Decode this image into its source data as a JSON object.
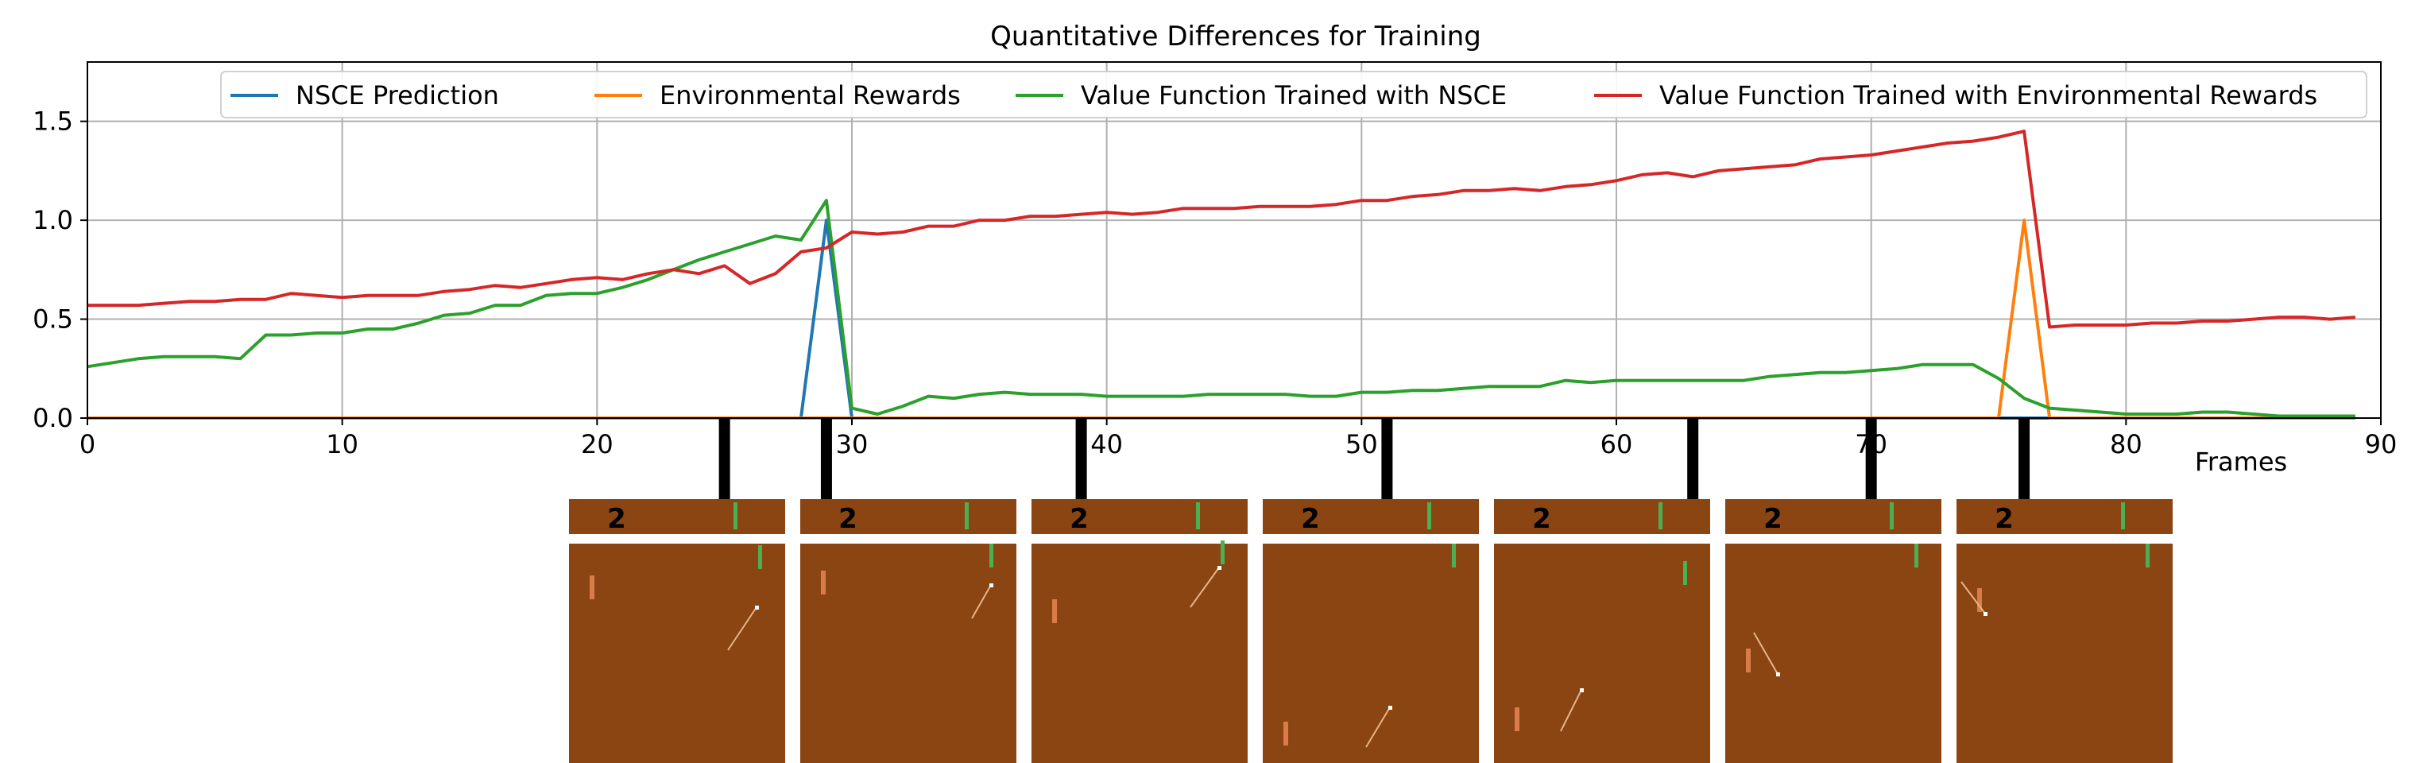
{
  "chart_data": {
    "type": "line",
    "title": "Quantitative Differences for Training",
    "xlabel": "Frames",
    "ylabel": "",
    "xlim": [
      0,
      90
    ],
    "ylim": [
      0,
      1.8
    ],
    "xticks": [
      0,
      10,
      20,
      30,
      40,
      50,
      60,
      70,
      80,
      90
    ],
    "yticks": [
      0.0,
      0.5,
      1.0,
      1.5
    ],
    "ytick_labels": [
      "0.0",
      "0.5",
      "1.0",
      "1.5"
    ],
    "grid": true,
    "legend_position": "top-right",
    "series": [
      {
        "name": "NSCE Prediction",
        "color": "#1f77b4",
        "x": [
          0,
          28,
          29,
          30,
          89
        ],
        "y": [
          0,
          0,
          1.0,
          0,
          0
        ]
      },
      {
        "name": "Environmental Rewards",
        "color": "#ff7f0e",
        "x": [
          0,
          75,
          76,
          77,
          89
        ],
        "y": [
          0,
          0,
          1.0,
          0,
          0
        ]
      },
      {
        "name": "Value Function Trained with NSCE",
        "color": "#2ca02c",
        "x": [
          0,
          1,
          2,
          3,
          4,
          5,
          6,
          7,
          8,
          9,
          10,
          11,
          12,
          13,
          14,
          15,
          16,
          17,
          18,
          19,
          20,
          21,
          22,
          23,
          24,
          25,
          26,
          27,
          28,
          29,
          30,
          31,
          32,
          33,
          34,
          35,
          36,
          37,
          38,
          39,
          40,
          41,
          42,
          43,
          44,
          45,
          46,
          47,
          48,
          49,
          50,
          51,
          52,
          53,
          54,
          55,
          56,
          57,
          58,
          59,
          60,
          61,
          62,
          63,
          64,
          65,
          66,
          67,
          68,
          69,
          70,
          71,
          72,
          73,
          74,
          75,
          76,
          77,
          78,
          79,
          80,
          81,
          82,
          83,
          84,
          85,
          86,
          87,
          88,
          89
        ],
        "y": [
          0.26,
          0.28,
          0.3,
          0.31,
          0.31,
          0.31,
          0.3,
          0.42,
          0.42,
          0.43,
          0.43,
          0.45,
          0.45,
          0.48,
          0.52,
          0.53,
          0.57,
          0.57,
          0.62,
          0.63,
          0.63,
          0.66,
          0.7,
          0.75,
          0.8,
          0.84,
          0.88,
          0.92,
          0.9,
          1.1,
          0.05,
          0.02,
          0.06,
          0.11,
          0.1,
          0.12,
          0.13,
          0.12,
          0.12,
          0.12,
          0.11,
          0.11,
          0.11,
          0.11,
          0.12,
          0.12,
          0.12,
          0.12,
          0.11,
          0.11,
          0.13,
          0.13,
          0.14,
          0.14,
          0.15,
          0.16,
          0.16,
          0.16,
          0.19,
          0.18,
          0.19,
          0.19,
          0.19,
          0.19,
          0.19,
          0.19,
          0.21,
          0.22,
          0.23,
          0.23,
          0.24,
          0.25,
          0.27,
          0.27,
          0.27,
          0.2,
          0.1,
          0.05,
          0.04,
          0.03,
          0.02,
          0.02,
          0.02,
          0.03,
          0.03,
          0.02,
          0.01,
          0.01,
          0.01,
          0.01
        ]
      },
      {
        "name": "Value Function Trained with Environmental Rewards",
        "color": "#d62728",
        "x": [
          0,
          1,
          2,
          3,
          4,
          5,
          6,
          7,
          8,
          9,
          10,
          11,
          12,
          13,
          14,
          15,
          16,
          17,
          18,
          19,
          20,
          21,
          22,
          23,
          24,
          25,
          26,
          27,
          28,
          29,
          30,
          31,
          32,
          33,
          34,
          35,
          36,
          37,
          38,
          39,
          40,
          41,
          42,
          43,
          44,
          45,
          46,
          47,
          48,
          49,
          50,
          51,
          52,
          53,
          54,
          55,
          56,
          57,
          58,
          59,
          60,
          61,
          62,
          63,
          64,
          65,
          66,
          67,
          68,
          69,
          70,
          71,
          72,
          73,
          74,
          75,
          76,
          77,
          78,
          79,
          80,
          81,
          82,
          83,
          84,
          85,
          86,
          87,
          88,
          89
        ],
        "y": [
          0.57,
          0.57,
          0.57,
          0.58,
          0.59,
          0.59,
          0.6,
          0.6,
          0.63,
          0.62,
          0.61,
          0.62,
          0.62,
          0.62,
          0.64,
          0.65,
          0.67,
          0.66,
          0.68,
          0.7,
          0.71,
          0.7,
          0.73,
          0.75,
          0.73,
          0.77,
          0.68,
          0.73,
          0.84,
          0.86,
          0.94,
          0.93,
          0.94,
          0.97,
          0.97,
          1.0,
          1.0,
          1.02,
          1.02,
          1.03,
          1.04,
          1.03,
          1.04,
          1.06,
          1.06,
          1.06,
          1.07,
          1.07,
          1.07,
          1.08,
          1.1,
          1.1,
          1.12,
          1.13,
          1.15,
          1.15,
          1.16,
          1.15,
          1.17,
          1.18,
          1.2,
          1.23,
          1.24,
          1.22,
          1.25,
          1.26,
          1.27,
          1.28,
          1.31,
          1.32,
          1.33,
          1.35,
          1.37,
          1.39,
          1.4,
          1.42,
          1.45,
          0.46,
          0.47,
          0.47,
          0.47,
          0.48,
          0.48,
          0.49,
          0.49,
          0.5,
          0.51,
          0.51,
          0.5,
          0.51
        ]
      }
    ],
    "frame_markers": [
      25,
      29,
      39,
      51,
      63,
      70,
      76
    ]
  },
  "frames": {
    "count_label": "2",
    "colors": {
      "background": "#8b4513",
      "score": "#e0935d",
      "paddle_player": "#4caf50",
      "paddle_cpu": "#d97c4a",
      "ball": "#ffffff"
    }
  }
}
